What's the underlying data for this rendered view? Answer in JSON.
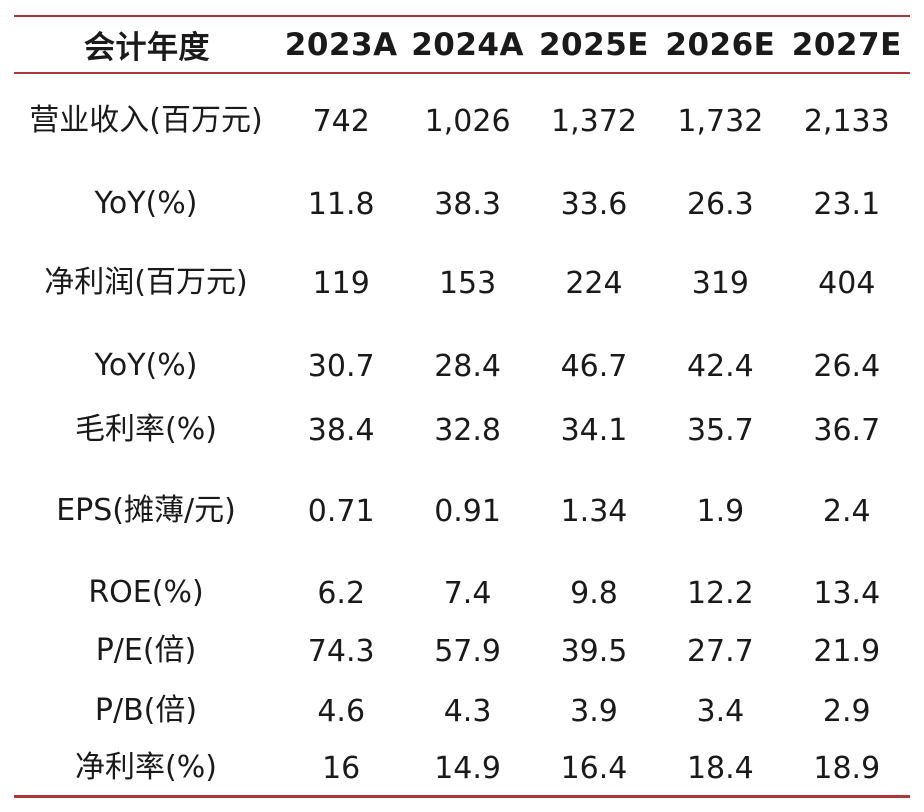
{
  "table": {
    "header": {
      "label": "会计年度",
      "years": [
        "2023A",
        "2024A",
        "2025E",
        "2026E",
        "2027E"
      ]
    },
    "rows": [
      {
        "label": "营业收入(百万元)",
        "values": [
          "742",
          "1,026",
          "1,372",
          "1,732",
          "2,133"
        ]
      },
      {
        "label": "YoY(%)",
        "values": [
          "11.8",
          "38.3",
          "33.6",
          "26.3",
          "23.1"
        ]
      },
      {
        "label": "净利润(百万元)",
        "values": [
          "119",
          "153",
          "224",
          "319",
          "404"
        ]
      },
      {
        "label": "YoY(%)",
        "values": [
          "30.7",
          "28.4",
          "46.7",
          "42.4",
          "26.4"
        ]
      },
      {
        "label": "毛利率(%)",
        "values": [
          "38.4",
          "32.8",
          "34.1",
          "35.7",
          "36.7"
        ]
      },
      {
        "label": "EPS(摊薄/元)",
        "values": [
          "0.71",
          "0.91",
          "1.34",
          "1.9",
          "2.4"
        ]
      },
      {
        "label": "ROE(%)",
        "values": [
          "6.2",
          "7.4",
          "9.8",
          "12.2",
          "13.4"
        ]
      },
      {
        "label": "P/E(倍)",
        "values": [
          "74.3",
          "57.9",
          "39.5",
          "27.7",
          "21.9"
        ]
      },
      {
        "label": "P/B(倍)",
        "values": [
          "4.6",
          "4.3",
          "3.9",
          "3.4",
          "2.9"
        ]
      },
      {
        "label": "净利率(%)",
        "values": [
          "16",
          "14.9",
          "16.4",
          "18.4",
          "18.9"
        ]
      }
    ]
  },
  "colors": {
    "rule": "#b0343c",
    "text": "#1a1a1a"
  }
}
